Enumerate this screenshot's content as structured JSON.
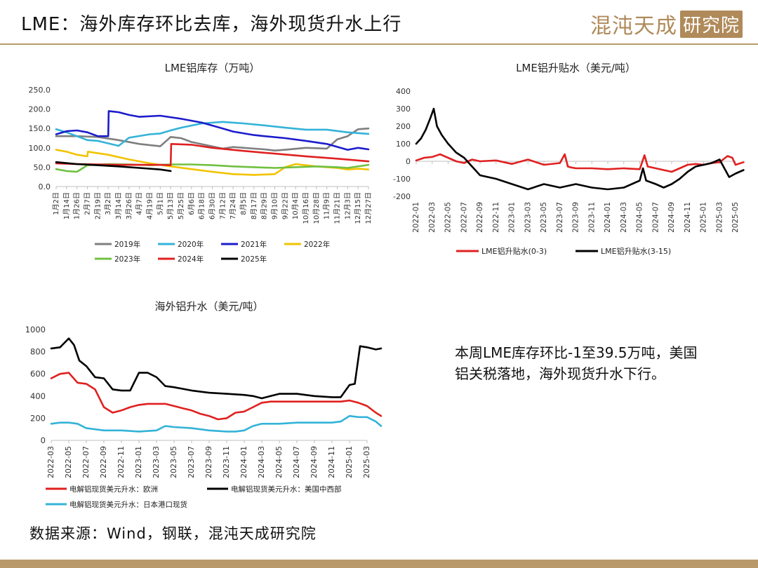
{
  "slide": {
    "title": "LME：海外库存环比去库，海外现货升水上行",
    "brand_main": "混沌天成",
    "brand_box": "研究院",
    "note": "本周LME库存环比-1至39.5万吨，美国铝关税落地，海外现货升水下行。",
    "source": "数据来源：Wind，钢联，混沌天成研究院"
  },
  "colors": {
    "brand": "#b08a5a",
    "rule": "#b89a6a"
  },
  "chart_data": [
    {
      "id": "inventory",
      "type": "line",
      "title": "LME铝库存（万吨）",
      "x_ticks": [
        "1月2日",
        "1月14日",
        "1月26日",
        "2月7日",
        "2月19日",
        "3月2日",
        "3月14日",
        "3月26日",
        "4月7日",
        "4月19日",
        "5月1日",
        "5月13日",
        "5月25日",
        "6月6日",
        "6月18日",
        "6月30日",
        "7月12日",
        "7月24日",
        "8月5日",
        "8月17日",
        "8月29日",
        "9月10日",
        "9月22日",
        "10月4日",
        "10月16日",
        "10月28日",
        "11月9日",
        "11月21日",
        "12月3日",
        "12月15日",
        "12月27日"
      ],
      "ylim": [
        0,
        250
      ],
      "y_ticks": [
        "0.0",
        "50.0",
        "100.0",
        "150.0",
        "200.0",
        "250.0"
      ],
      "grid": false,
      "legend_position": "bottom",
      "series": [
        {
          "name": "2019年",
          "color": "#7f7f7f",
          "x": [
            0,
            2,
            4,
            6,
            8,
            10,
            11,
            12,
            13,
            16,
            17,
            20,
            21,
            22,
            24,
            26,
            27,
            28,
            29,
            30
          ],
          "values": [
            130,
            130,
            128,
            120,
            110,
            104,
            128,
            125,
            115,
            98,
            102,
            96,
            93,
            95,
            100,
            98,
            122,
            130,
            148,
            150
          ]
        },
        {
          "name": "2020年",
          "color": "#33b3d8",
          "x": [
            0,
            1,
            3,
            4,
            6,
            7,
            9,
            10,
            11,
            12,
            14,
            16,
            18,
            20,
            22,
            24,
            26,
            28,
            30
          ],
          "values": [
            148,
            140,
            120,
            118,
            105,
            126,
            135,
            137,
            145,
            152,
            163,
            167,
            163,
            158,
            152,
            147,
            147,
            140,
            136
          ]
        },
        {
          "name": "2021年",
          "color": "#1c1ccc",
          "x": [
            0,
            1,
            2,
            3,
            4,
            5,
            5.05,
            6,
            7,
            8,
            10,
            12,
            14,
            16,
            17,
            19,
            20,
            22,
            24,
            26,
            28,
            29,
            30
          ],
          "values": [
            135,
            143,
            145,
            140,
            130,
            130,
            195,
            192,
            185,
            180,
            183,
            175,
            165,
            150,
            142,
            133,
            130,
            125,
            118,
            110,
            95,
            100,
            96
          ]
        },
        {
          "name": "2022年",
          "color": "#f2c300",
          "x": [
            0,
            1,
            2,
            3,
            3.05,
            5,
            7,
            9,
            11,
            13,
            15,
            17,
            19,
            21,
            22,
            23,
            25,
            27,
            28,
            29,
            30
          ],
          "values": [
            95,
            90,
            82,
            78,
            90,
            82,
            70,
            60,
            52,
            45,
            38,
            32,
            30,
            32,
            50,
            58,
            52,
            48,
            44,
            46,
            44
          ]
        },
        {
          "name": "2023年",
          "color": "#70c040",
          "x": [
            0,
            1,
            2,
            3,
            5,
            7,
            9,
            11,
            13,
            15,
            17,
            19,
            21,
            23,
            25,
            27,
            28,
            30
          ],
          "values": [
            45,
            40,
            38,
            55,
            58,
            57,
            55,
            57,
            57,
            55,
            52,
            50,
            48,
            50,
            52,
            50,
            48,
            56
          ]
        },
        {
          "name": "2024年",
          "color": "#e02020",
          "x": [
            0,
            2,
            4,
            6,
            8,
            10,
            11,
            11.05,
            13,
            15,
            18,
            21,
            24,
            27,
            30
          ],
          "values": [
            60,
            58,
            57,
            56,
            56,
            56,
            55,
            110,
            108,
            100,
            92,
            85,
            78,
            72,
            65
          ]
        },
        {
          "name": "2025年",
          "color": "#000000",
          "x": [
            0,
            2,
            4,
            6,
            8,
            10,
            11
          ],
          "values": [
            63,
            58,
            55,
            52,
            48,
            44,
            40
          ]
        }
      ]
    },
    {
      "id": "backwardation",
      "type": "line",
      "title": "LME铝升贴水（美元/吨）",
      "x_ticks": [
        "2022-01",
        "2022-03",
        "2022-05",
        "2022-07",
        "2022-09",
        "2022-11",
        "2023-01",
        "2023-03",
        "2023-05",
        "2023-07",
        "2023-09",
        "2023-11",
        "2024-01",
        "2024-03",
        "2024-05",
        "2024-07",
        "2024-09",
        "2024-11",
        "2025-01",
        "2025-03",
        "2025-05"
      ],
      "ylim": [
        -200,
        400
      ],
      "y_ticks": [
        "-200",
        "-100",
        "0",
        "100",
        "200",
        "300",
        "400"
      ],
      "grid": false,
      "legend_position": "bottom",
      "series": [
        {
          "name": "LME铝升贴水(0-3)",
          "color": "#e02020",
          "x": [
            0,
            0.5,
            1,
            1.5,
            2,
            2.5,
            3,
            3.5,
            4,
            5,
            6,
            7,
            8,
            9,
            9.3,
            9.5,
            9.7,
            10,
            11,
            12,
            13,
            14,
            14.3,
            14.5,
            15,
            16,
            16.5,
            17,
            17.5,
            18,
            18.5,
            19,
            19.5,
            19.8,
            20,
            20.5
          ],
          "values": [
            5,
            20,
            25,
            40,
            20,
            0,
            -10,
            10,
            0,
            5,
            -15,
            10,
            -20,
            -10,
            40,
            -30,
            -35,
            -40,
            -40,
            -45,
            -40,
            -45,
            35,
            -30,
            -40,
            -60,
            -40,
            -20,
            -15,
            -20,
            -10,
            -5,
            30,
            20,
            -20,
            -5
          ]
        },
        {
          "name": "LME铝升贴水(3-15)",
          "color": "#000000",
          "x": [
            0,
            0.3,
            0.6,
            0.9,
            1.1,
            1.3,
            1.6,
            2,
            2.5,
            3,
            3.5,
            4,
            5,
            6,
            7,
            8,
            9,
            10,
            11,
            12,
            13,
            14,
            14.2,
            14.4,
            15,
            15.5,
            16,
            16.5,
            17,
            17.5,
            18,
            18.5,
            19,
            19.3,
            19.6,
            20,
            20.5
          ],
          "values": [
            100,
            130,
            180,
            250,
            300,
            200,
            150,
            100,
            50,
            20,
            -30,
            -80,
            -100,
            -130,
            -160,
            -130,
            -150,
            -130,
            -150,
            -160,
            -150,
            -110,
            -40,
            -110,
            -130,
            -150,
            -130,
            -100,
            -60,
            -30,
            -20,
            -10,
            10,
            -40,
            -90,
            -70,
            -50
          ]
        }
      ]
    },
    {
      "id": "premium",
      "type": "line",
      "title": "海外铝升水（美元/吨）",
      "x_ticks": [
        "2022-03",
        "2022-05",
        "2022-07",
        "2022-09",
        "2022-11",
        "2023-01",
        "2023-03",
        "2023-05",
        "2023-07",
        "2023-09",
        "2023-11",
        "2024-01",
        "2024-03",
        "2024-05",
        "2024-07",
        "2024-09",
        "2024-11",
        "2025-01",
        "2025-03"
      ],
      "ylim": [
        0,
        1000
      ],
      "y_ticks": [
        "0",
        "200",
        "400",
        "600",
        "800",
        "1000"
      ],
      "grid": false,
      "legend_position": "bottom",
      "series": [
        {
          "name": "电解铝现货美元升水：欧洲",
          "color": "#e02020",
          "x": [
            0,
            0.5,
            1,
            1.5,
            2,
            2.5,
            3,
            3.5,
            4,
            4.5,
            5,
            5.5,
            6,
            6.5,
            7,
            7.5,
            8,
            8.5,
            9,
            9.5,
            10,
            10.5,
            11,
            11.5,
            12,
            12.5,
            13,
            14,
            15,
            16,
            16.5,
            17,
            17.5,
            18,
            18.5,
            18.8
          ],
          "values": [
            560,
            600,
            610,
            520,
            510,
            460,
            300,
            250,
            270,
            300,
            320,
            330,
            330,
            330,
            310,
            290,
            270,
            240,
            220,
            190,
            200,
            250,
            260,
            300,
            340,
            350,
            350,
            350,
            350,
            350,
            350,
            360,
            340,
            310,
            250,
            220
          ]
        },
        {
          "name": "电解铝现货美元升水：美国中西部",
          "color": "#000000",
          "x": [
            0,
            0.5,
            1,
            1.3,
            1.6,
            2,
            2.5,
            3,
            3.5,
            4,
            4.5,
            5,
            5.5,
            6,
            6.5,
            7,
            8,
            9,
            10,
            11,
            11.5,
            12,
            12.5,
            13,
            14,
            15,
            16,
            16.5,
            17,
            17.3,
            17.6,
            18,
            18.5,
            18.8
          ],
          "values": [
            830,
            840,
            920,
            860,
            720,
            670,
            570,
            560,
            460,
            450,
            450,
            610,
            610,
            570,
            490,
            480,
            450,
            430,
            420,
            410,
            400,
            380,
            400,
            420,
            420,
            400,
            390,
            390,
            500,
            510,
            850,
            840,
            820,
            830
          ]
        },
        {
          "name": "电解铝现货美元升水：日本港口现货",
          "color": "#33b3d8",
          "x": [
            0,
            0.5,
            1,
            1.5,
            2,
            3,
            4,
            5,
            6,
            6.5,
            7,
            8,
            9,
            10,
            10.5,
            11,
            11.5,
            12,
            13,
            14,
            15,
            16,
            16.5,
            17,
            17.5,
            18,
            18.5,
            18.8
          ],
          "values": [
            150,
            160,
            160,
            150,
            110,
            90,
            90,
            80,
            90,
            130,
            120,
            110,
            90,
            80,
            80,
            90,
            130,
            150,
            150,
            160,
            160,
            160,
            170,
            220,
            210,
            210,
            170,
            130
          ]
        }
      ]
    }
  ]
}
